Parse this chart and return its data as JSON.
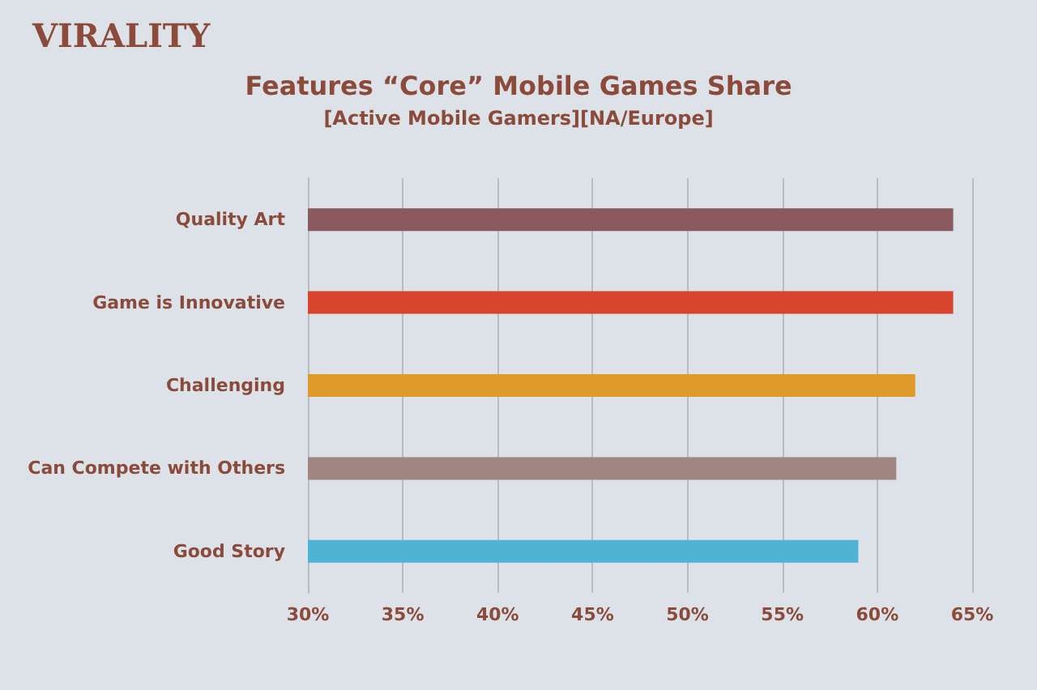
{
  "chart_data": {
    "type": "bar",
    "orientation": "horizontal",
    "title": "Features “Core” Mobile Games Share",
    "subtitle": "[Active Mobile Gamers][NA/Europe]",
    "annotations": [
      "VIRALITY"
    ],
    "categories": [
      "Quality Art",
      "Game is Innovative",
      "Challenging",
      "Can Compete with Others",
      "Good Story"
    ],
    "values": [
      64,
      64,
      62,
      61,
      59
    ],
    "colors": [
      "#8b5a5e",
      "#d9442f",
      "#e09a2a",
      "#a08580",
      "#4fb3d6"
    ],
    "xlim": [
      30,
      65
    ],
    "xticks": [
      {
        "value": 30,
        "label": "30%"
      },
      {
        "value": 35,
        "label": "35%"
      },
      {
        "value": 40,
        "label": "40%"
      },
      {
        "value": 45,
        "label": "45%"
      },
      {
        "value": 50,
        "label": "50%"
      },
      {
        "value": 55,
        "label": "55%"
      },
      {
        "value": 60,
        "label": "60%"
      },
      {
        "value": 65,
        "label": "65%"
      }
    ],
    "grid": "x"
  }
}
